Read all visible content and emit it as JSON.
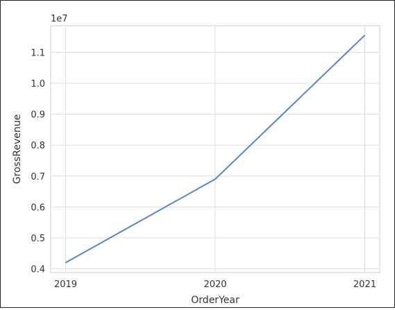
{
  "chart_data": {
    "type": "line",
    "x": [
      2019,
      2020,
      2021
    ],
    "categories": [
      "2019",
      "2020",
      "2021"
    ],
    "values": [
      4200000,
      6900000,
      11550000
    ],
    "xlabel": "OrderYear",
    "ylabel": "GrossRevenue",
    "offset_label": "1e7",
    "yticks": [
      0.4,
      0.5,
      0.6,
      0.7,
      0.8,
      0.9,
      1.0,
      1.1
    ],
    "ytick_labels": [
      "0.4",
      "0.5",
      "0.6",
      "0.7",
      "0.8",
      "0.9",
      "1.0",
      "1.1"
    ],
    "ylim": [
      3880000,
      11860000
    ],
    "xlim": [
      2018.9,
      2021.1
    ],
    "grid": true,
    "line_color": "#5a85c2",
    "grid_color": "#dddddd"
  }
}
